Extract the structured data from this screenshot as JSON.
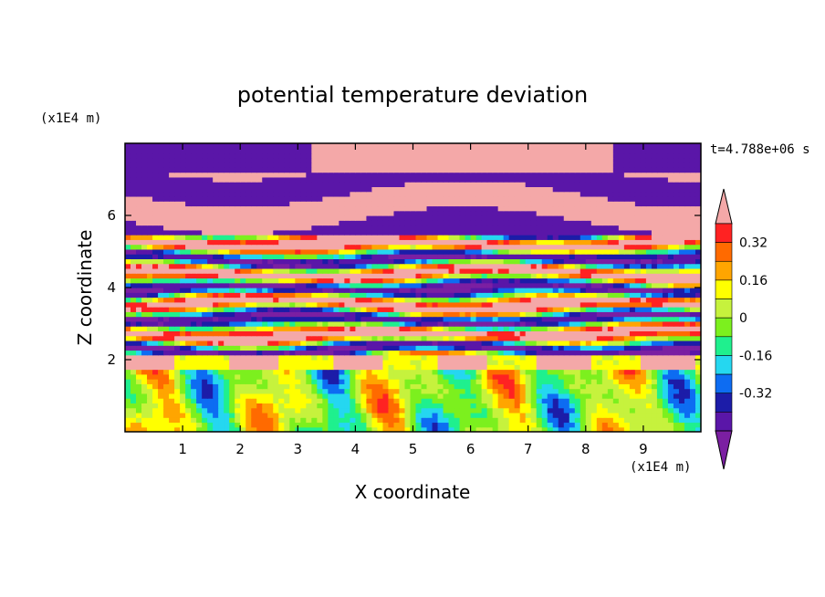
{
  "chart_data": {
    "type": "heatmap",
    "title": "potential temperature deviation",
    "xlabel": "X coordinate",
    "ylabel": "Z coordinate",
    "x_unit": "(x1E4 m)",
    "y_unit": "(x1E4 m)",
    "time_label": "t=4.788e+06 s",
    "xlim": [
      0,
      10
    ],
    "ylim": [
      0,
      8
    ],
    "x_ticks": [
      1,
      2,
      3,
      4,
      5,
      6,
      7,
      8,
      9
    ],
    "y_ticks": [
      2,
      4,
      6
    ],
    "colorbar": {
      "levels": [
        -0.48,
        -0.4,
        -0.32,
        -0.24,
        -0.16,
        -0.08,
        0,
        0.08,
        0.16,
        0.24,
        0.32,
        0.4,
        0.48
      ],
      "tick_labels": [
        "0.32",
        "0.16",
        "0",
        "-0.16",
        "-0.32"
      ],
      "tick_values": [
        0.32,
        0.16,
        0,
        -0.16,
        -0.32
      ],
      "colors": [
        "#7b1fa2",
        "#5a16a8",
        "#1c1ca8",
        "#0d6cf2",
        "#25d7f0",
        "#1ff08e",
        "#7cf01e",
        "#c6f23d",
        "#ffff00",
        "#ffa500",
        "#ff6a00",
        "#ff2222",
        "#f4a8a8"
      ],
      "extend": "both"
    }
  }
}
